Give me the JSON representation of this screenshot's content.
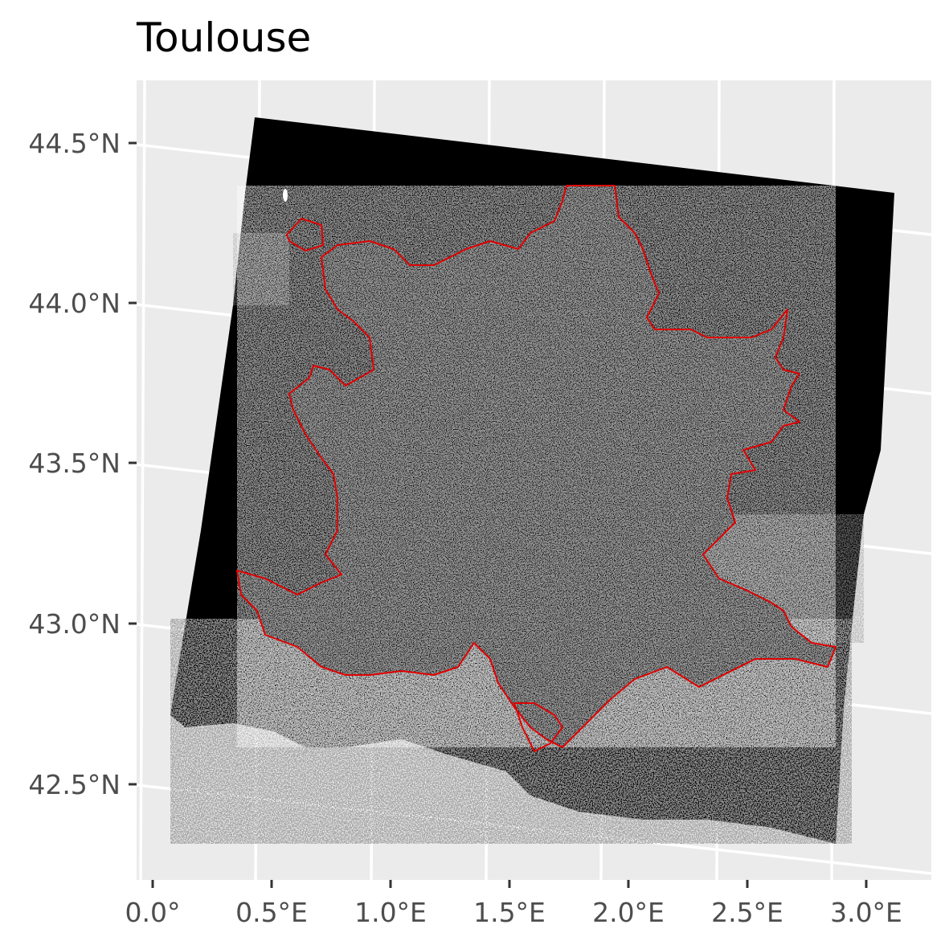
{
  "title": "Toulouse",
  "colors": {
    "panel_background": "#ebebeb",
    "grid_lines": "#ffffff",
    "point_fill": "#000000",
    "region_fill": "#121212",
    "boundary_stroke": "#e00000",
    "tick_label": "#4d4d4d",
    "tick_mark": "#333333"
  },
  "axes": {
    "x_ticks": [
      "0.0°",
      "0.5°E",
      "1.0°E",
      "1.5°E",
      "2.0°E",
      "2.5°E",
      "3.0°E"
    ],
    "y_ticks": [
      "44.5°N",
      "44.0°N",
      "43.5°N",
      "43.0°N",
      "42.5°N"
    ]
  },
  "chart_data": {
    "type": "scatter",
    "title": "Toulouse",
    "xlabel": "",
    "ylabel": "",
    "x_range": [
      -0.05,
      3.25
    ],
    "y_range": [
      42.23,
      44.7
    ],
    "grid": true,
    "legend": "none",
    "layers": [
      "point cloud (black dots)",
      "region boundary outline (red)"
    ],
    "points_extent": {
      "corners_lonlat": [
        [
          0.43,
          44.58
        ],
        [
          3.1,
          44.34
        ],
        [
          2.83,
          42.32
        ],
        [
          0.09,
          42.7
        ]
      ]
    }
  }
}
